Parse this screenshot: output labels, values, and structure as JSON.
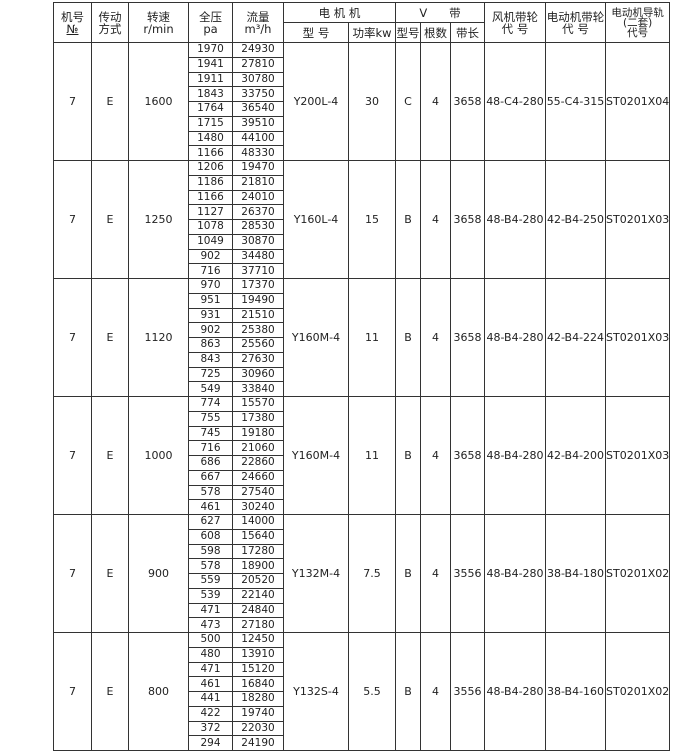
{
  "header": {
    "no": [
      "机号",
      "№"
    ],
    "drive": [
      "传动",
      "方式"
    ],
    "speed": [
      "转速",
      "r/min"
    ],
    "pressure": [
      "全压",
      "pa"
    ],
    "flow": [
      "流量",
      "m³/h"
    ],
    "motor": "电 机 机",
    "motor_model": "型 号",
    "motor_power": "功率kw",
    "vbelt": "V      带",
    "belt_type": "型号",
    "belt_count": "根数",
    "belt_length": "带长",
    "fan_pulley": [
      "风机带轮",
      "代 号"
    ],
    "motor_pulley": [
      "电动机带轮",
      "代 号"
    ],
    "rail": [
      "电动机导轨",
      "(二套)",
      "代号"
    ]
  },
  "groups": [
    {
      "no": "7",
      "drive": "E",
      "speed": "1600",
      "pressure": [
        "1970",
        "1941",
        "1911",
        "1843",
        "1764",
        "1715",
        "1480",
        "1166"
      ],
      "flow": [
        "24930",
        "27810",
        "30780",
        "33750",
        "36540",
        "39510",
        "44100",
        "48330"
      ],
      "motor_model": "Y200L-4",
      "power": "30",
      "belt_type": "C",
      "belt_count": "4",
      "belt_length": "3658",
      "fan_pulley": "48-C4-280",
      "motor_pulley": "55-C4-315",
      "rail": "ST0201X04"
    },
    {
      "no": "7",
      "drive": "E",
      "speed": "1250",
      "pressure": [
        "1206",
        "1186",
        "1166",
        "1127",
        "1078",
        "1049",
        "902",
        "716"
      ],
      "flow": [
        "19470",
        "21810",
        "24010",
        "26370",
        "28530",
        "30870",
        "34480",
        "37710"
      ],
      "motor_model": "Y160L-4",
      "power": "15",
      "belt_type": "B",
      "belt_count": "4",
      "belt_length": "3658",
      "fan_pulley": "48-B4-280",
      "motor_pulley": "42-B4-250",
      "rail": "ST0201X03"
    },
    {
      "no": "7",
      "drive": "E",
      "speed": "1120",
      "pressure": [
        "970",
        "951",
        "931",
        "902",
        "863",
        "843",
        "725",
        "549"
      ],
      "flow": [
        "17370",
        "19490",
        "21510",
        "25380",
        "25560",
        "27630",
        "30960",
        "33840"
      ],
      "motor_model": "Y160M-4",
      "power": "11",
      "belt_type": "B",
      "belt_count": "4",
      "belt_length": "3658",
      "fan_pulley": "48-B4-280",
      "motor_pulley": "42-B4-224",
      "rail": "ST0201X03"
    },
    {
      "no": "7",
      "drive": "E",
      "speed": "1000",
      "pressure": [
        "774",
        "755",
        "745",
        "716",
        "686",
        "667",
        "578",
        "461"
      ],
      "flow": [
        "15570",
        "17380",
        "19180",
        "21060",
        "22860",
        "24660",
        "27540",
        "30240"
      ],
      "motor_model": "Y160M-4",
      "power": "11",
      "belt_type": "B",
      "belt_count": "4",
      "belt_length": "3658",
      "fan_pulley": "48-B4-280",
      "motor_pulley": "42-B4-200",
      "rail": "ST0201X03"
    },
    {
      "no": "7",
      "drive": "E",
      "speed": "900",
      "pressure": [
        "627",
        "608",
        "598",
        "578",
        "559",
        "539",
        "471",
        "473"
      ],
      "flow": [
        "14000",
        "15640",
        "17280",
        "18900",
        "20520",
        "22140",
        "24840",
        "27180"
      ],
      "motor_model": "Y132M-4",
      "power": "7.5",
      "belt_type": "B",
      "belt_count": "4",
      "belt_length": "3556",
      "fan_pulley": "48-B4-280",
      "motor_pulley": "38-B4-180",
      "rail": "ST0201X02"
    },
    {
      "no": "7",
      "drive": "E",
      "speed": "800",
      "pressure": [
        "500",
        "480",
        "471",
        "461",
        "441",
        "422",
        "372",
        "294"
      ],
      "flow": [
        "12450",
        "13910",
        "15120",
        "16840",
        "18280",
        "19740",
        "22030",
        "24190"
      ],
      "motor_model": "Y132S-4",
      "power": "5.5",
      "belt_type": "B",
      "belt_count": "4",
      "belt_length": "3556",
      "fan_pulley": "48-B4-280",
      "motor_pulley": "38-B4-160",
      "rail": "ST0201X02"
    }
  ]
}
